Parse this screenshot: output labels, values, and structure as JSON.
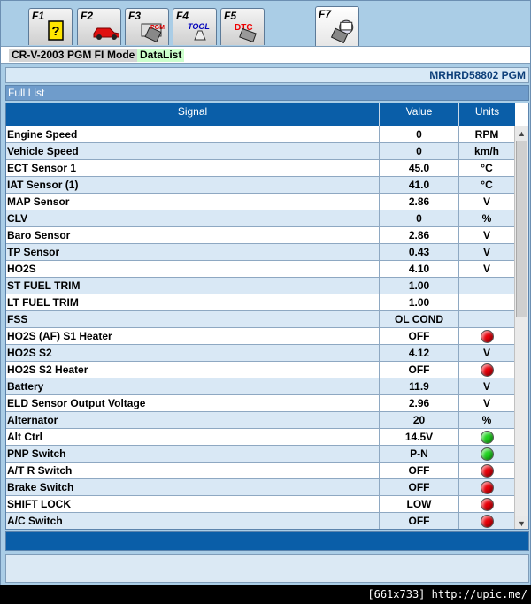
{
  "fkeys": [
    {
      "label": "F1",
      "icon": "help-icon"
    },
    {
      "label": "F2",
      "icon": "car-icon"
    },
    {
      "label": "F3",
      "icon": "pgm-module-icon"
    },
    {
      "label": "F4",
      "icon": "tool-icon"
    },
    {
      "label": "F5",
      "icon": "dtc-icon"
    },
    {
      "label": "F7",
      "icon": "scan-tool-icon"
    }
  ],
  "breadcrumb": [
    "CR-V-2003",
    "PGM FI",
    "Mode",
    "DataList"
  ],
  "vehicle_code": "MRHRD58802  PGM",
  "list_title": "Full List",
  "columns": {
    "signal": "Signal",
    "value": "Value",
    "units": "Units"
  },
  "rows": [
    {
      "signal": "Engine Speed",
      "value": "0",
      "unit": "RPM"
    },
    {
      "signal": "Vehicle Speed",
      "value": "0",
      "unit": "km/h"
    },
    {
      "signal": "ECT Sensor 1",
      "value": "45.0",
      "unit": "°C"
    },
    {
      "signal": "IAT Sensor (1)",
      "value": "41.0",
      "unit": "°C"
    },
    {
      "signal": "MAP Sensor",
      "value": "2.86",
      "unit": "V"
    },
    {
      "signal": "CLV",
      "value": "0",
      "unit": "%"
    },
    {
      "signal": "Baro Sensor",
      "value": "2.86",
      "unit": "V"
    },
    {
      "signal": "TP Sensor",
      "value": "0.43",
      "unit": "V"
    },
    {
      "signal": "HO2S",
      "value": "4.10",
      "unit": "V"
    },
    {
      "signal": "ST FUEL TRIM",
      "value": "1.00",
      "unit": ""
    },
    {
      "signal": "LT FUEL TRIM",
      "value": "1.00",
      "unit": ""
    },
    {
      "signal": "FSS",
      "value": "OL COND",
      "unit": ""
    },
    {
      "signal": "HO2S (AF) S1 Heater",
      "value": "OFF",
      "unit": "",
      "led": "red"
    },
    {
      "signal": "HO2S S2",
      "value": "4.12",
      "unit": "V"
    },
    {
      "signal": "HO2S S2 Heater",
      "value": "OFF",
      "unit": "",
      "led": "red"
    },
    {
      "signal": "Battery",
      "value": "11.9",
      "unit": "V"
    },
    {
      "signal": "ELD Sensor Output Voltage",
      "value": "2.96",
      "unit": "V"
    },
    {
      "signal": "Alternator",
      "value": "20",
      "unit": "%"
    },
    {
      "signal": "Alt Ctrl",
      "value": "14.5V",
      "unit": "",
      "led": "green"
    },
    {
      "signal": "PNP Switch",
      "value": "P-N",
      "unit": "",
      "led": "green"
    },
    {
      "signal": "A/T R Switch",
      "value": "OFF",
      "unit": "",
      "led": "red"
    },
    {
      "signal": "Brake Switch",
      "value": "OFF",
      "unit": "",
      "led": "red"
    },
    {
      "signal": "SHIFT LOCK",
      "value": "LOW",
      "unit": "",
      "led": "red"
    },
    {
      "signal": "A/C Switch",
      "value": "OFF",
      "unit": "",
      "led": "red"
    }
  ],
  "watermark": "[661x733] http://upic.me/",
  "colors": {
    "header": "#0a5ea8",
    "alt_row": "#d9e8f5",
    "led_red": "#e8000a",
    "led_green": "#1fd21f"
  }
}
